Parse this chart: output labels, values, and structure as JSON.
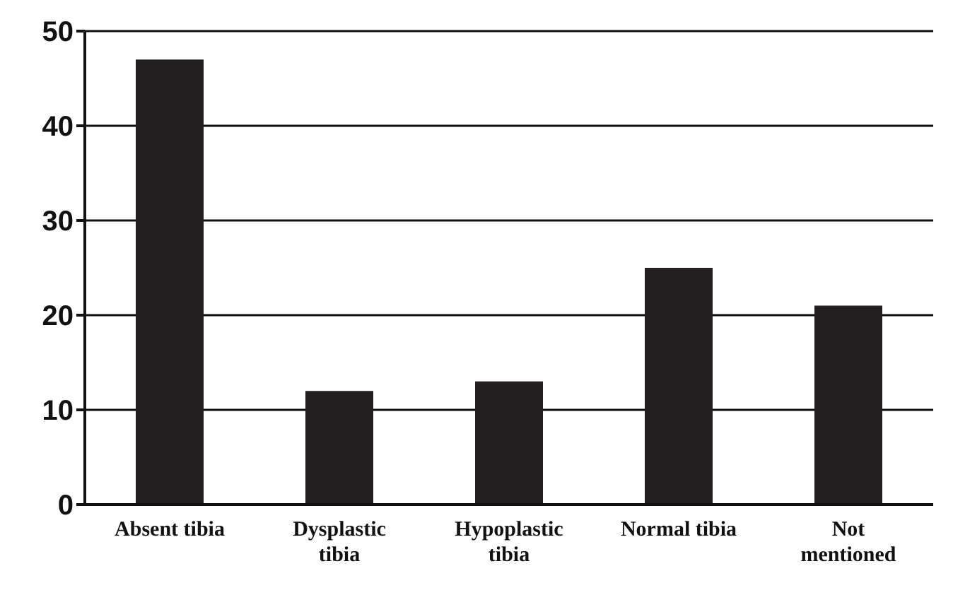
{
  "chart_data": {
    "type": "bar",
    "categories": [
      "Absent tibia",
      "Dysplastic tibia",
      "Hypoplastic tibia",
      "Normal tibia",
      "Not mentioned"
    ],
    "values": [
      47,
      12,
      13,
      25,
      21
    ],
    "color": "#231f20",
    "ylim": [
      0,
      50
    ],
    "yticks": [
      0,
      10,
      20,
      30,
      40,
      50
    ],
    "grid": "y"
  }
}
